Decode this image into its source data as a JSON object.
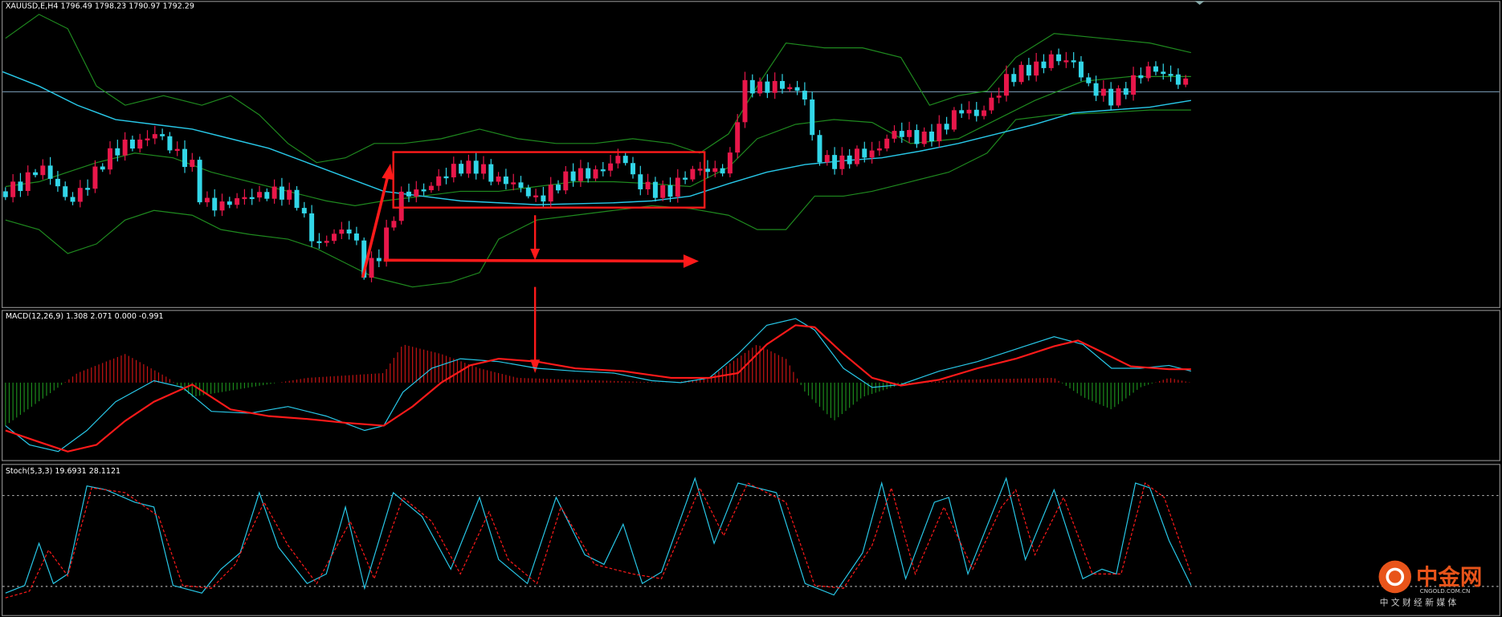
{
  "header": {
    "symbol_info": "XAUUSD,E,H4  1796.49 1798.23 1790.97 1792.29"
  },
  "macd": {
    "label": "MACD(12,26,9) 1.308 2.071 0.000 -0.991"
  },
  "stoch": {
    "label": "Stoch(5,3,3) 19.6931 28.1121"
  },
  "watermark": {
    "name": "中金网",
    "domain": "CNGOLD.COM.CN",
    "tagline": "中 文 财 经 新 媒 体"
  }
}
